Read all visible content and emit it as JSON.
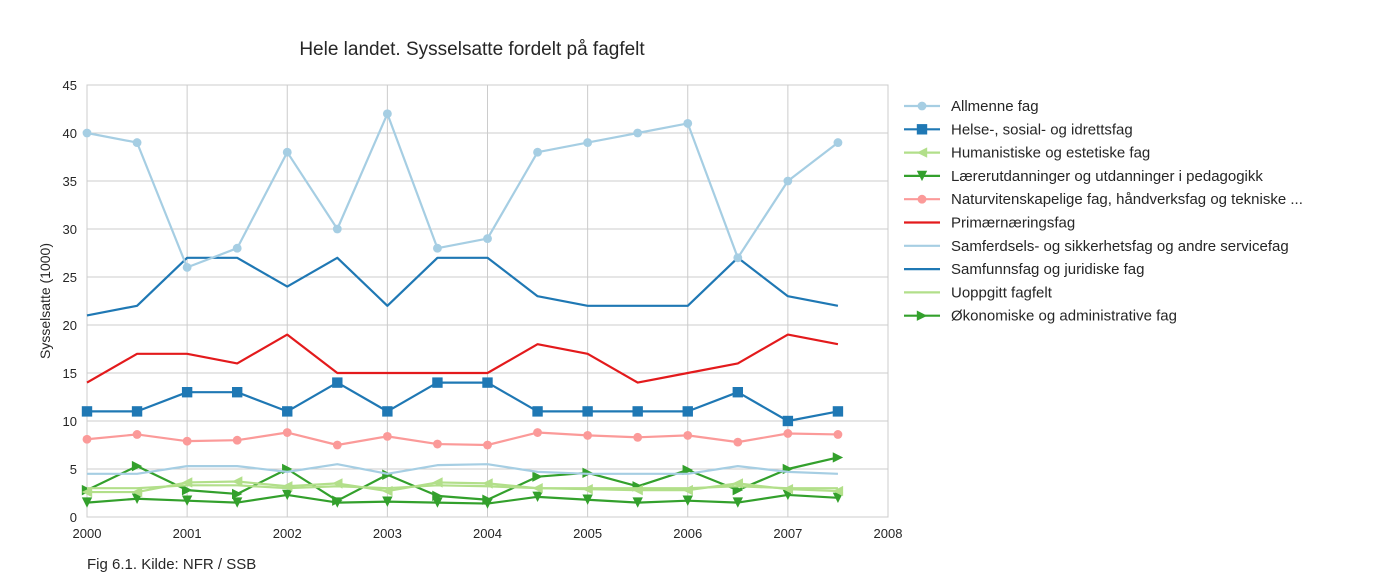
{
  "caption": "Fig 6.1. Kilde: NFR / SSB",
  "chart_data": {
    "type": "line",
    "title": "Hele landet. Sysselsatte fordelt på fagfelt",
    "xlabel": "",
    "ylabel": "Sysselsatte (1000)",
    "xlim": [
      2000,
      2008
    ],
    "ylim": [
      0,
      45
    ],
    "xticks": [
      "2000",
      "2001",
      "2002",
      "2003",
      "2004",
      "2005",
      "2006",
      "2007",
      "2008"
    ],
    "yticks": [
      "0",
      "5",
      "10",
      "15",
      "20",
      "25",
      "30",
      "35",
      "40",
      "45"
    ],
    "grid": true,
    "legend_position": "right",
    "x": [
      2000,
      2000.5,
      2001,
      2001.5,
      2002,
      2002.5,
      2003,
      2003.5,
      2004,
      2004.5,
      2005,
      2005.5,
      2006,
      2006.5,
      2007,
      2007.5
    ],
    "series": [
      {
        "name": "Allmenne fag",
        "color": "#a6cee3",
        "marker": "circle",
        "values": [
          40,
          39,
          26,
          28,
          38,
          30,
          42,
          28,
          29,
          38,
          39,
          40,
          41,
          27,
          35,
          39
        ]
      },
      {
        "name": "Helse-, sosial- og idrettsfag",
        "color": "#1f78b4",
        "marker": "square",
        "values": [
          11,
          11,
          13,
          13,
          11,
          14,
          11,
          14,
          14,
          11,
          11,
          11,
          11,
          13,
          10,
          11
        ]
      },
      {
        "name": "Humanistiske og estetiske fag",
        "color": "#b2df8a",
        "marker": "triangle-left",
        "values": [
          2.6,
          2.6,
          3.6,
          3.7,
          3.2,
          3.5,
          2.7,
          3.6,
          3.5,
          3.0,
          2.9,
          2.8,
          2.8,
          3.5,
          2.9,
          2.7
        ]
      },
      {
        "name": "Lærerutdanninger og utdanninger i pedagogikk",
        "color": "#33a02c",
        "marker": "triangle-down",
        "values": [
          1.5,
          1.9,
          1.7,
          1.5,
          2.3,
          1.5,
          1.6,
          1.5,
          1.4,
          2.1,
          1.8,
          1.5,
          1.7,
          1.5,
          2.3,
          2.0
        ]
      },
      {
        "name": "Naturvitenskapelige fag, håndverksfag og tekniske ...",
        "color": "#fb9a99",
        "marker": "circle",
        "values": [
          8.1,
          8.6,
          7.9,
          8.0,
          8.8,
          7.5,
          8.4,
          7.6,
          7.5,
          8.8,
          8.5,
          8.3,
          8.5,
          7.8,
          8.7,
          8.6
        ]
      },
      {
        "name": "Primærnæringsfag",
        "color": "#e31a1c",
        "marker": "none",
        "values": [
          14,
          17,
          17,
          16,
          19,
          15,
          15,
          15,
          15,
          18,
          17,
          14,
          15,
          16,
          19,
          18
        ]
      },
      {
        "name": "Samferdsels- og sikkerhetsfag og andre servicefag",
        "color": "#a6cee3",
        "marker": "none",
        "values": [
          4.5,
          4.5,
          5.3,
          5.3,
          4.7,
          5.5,
          4.5,
          5.4,
          5.5,
          4.7,
          4.5,
          4.5,
          4.5,
          5.3,
          4.7,
          4.5
        ]
      },
      {
        "name": "Samfunnsfag og juridiske fag",
        "color": "#1f78b4",
        "marker": "none",
        "values": [
          21,
          22,
          27,
          27,
          24,
          27,
          22,
          27,
          27,
          23,
          22,
          22,
          22,
          27,
          23,
          22
        ]
      },
      {
        "name": "Uoppgitt fagfelt",
        "color": "#b2df8a",
        "marker": "none",
        "values": [
          3.0,
          3.0,
          3.3,
          3.3,
          3.0,
          3.2,
          3.0,
          3.3,
          3.2,
          3.0,
          3.0,
          3.0,
          3.0,
          3.2,
          3.0,
          3.0
        ]
      },
      {
        "name": "Økonomiske og administrative fag",
        "color": "#33a02c",
        "marker": "triangle-right",
        "values": [
          2.8,
          5.3,
          2.8,
          2.4,
          5.0,
          1.7,
          4.4,
          2.2,
          1.8,
          4.2,
          4.6,
          3.2,
          4.9,
          2.8,
          5.0,
          6.2
        ]
      }
    ]
  }
}
